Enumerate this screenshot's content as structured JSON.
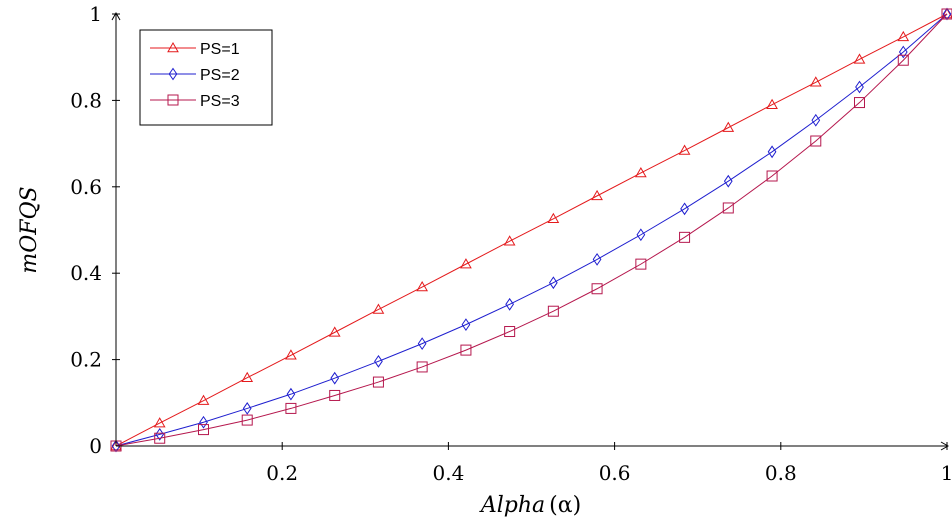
{
  "chart_data": {
    "type": "line",
    "xlabel_main": "Alpha",
    "xlabel_symbol": "(α)",
    "ylabel": "mOFQS",
    "xlim": [
      0,
      1
    ],
    "ylim": [
      0,
      1
    ],
    "xticks": [
      0.2,
      0.4,
      0.6,
      0.8,
      1
    ],
    "xtick_labels": [
      "0.2",
      "0.4",
      "0.6",
      "0.8",
      "1"
    ],
    "yticks": [
      0,
      0.2,
      0.4,
      0.6,
      0.8,
      1
    ],
    "ytick_labels": [
      "0",
      "0.2",
      "0.4",
      "0.6",
      "0.8",
      "1"
    ],
    "grid": false,
    "legend_position": "top-left",
    "x": [
      0,
      0.0526,
      0.1053,
      0.1579,
      0.2105,
      0.2632,
      0.3158,
      0.3684,
      0.4211,
      0.4737,
      0.5263,
      0.5789,
      0.6316,
      0.6842,
      0.7368,
      0.7895,
      0.8421,
      0.8947,
      0.9474,
      1
    ],
    "series": [
      {
        "name": "PS=1",
        "color": "#e41a1c",
        "marker": "triangle",
        "values": [
          0,
          0.053,
          0.105,
          0.158,
          0.21,
          0.263,
          0.316,
          0.368,
          0.421,
          0.474,
          0.526,
          0.579,
          0.632,
          0.684,
          0.737,
          0.79,
          0.842,
          0.895,
          0.947,
          1
        ]
      },
      {
        "name": "PS=2",
        "color": "#1f1fcf",
        "marker": "diamond",
        "values": [
          0,
          0.027,
          0.055,
          0.087,
          0.12,
          0.157,
          0.196,
          0.237,
          0.281,
          0.328,
          0.378,
          0.432,
          0.489,
          0.549,
          0.613,
          0.681,
          0.754,
          0.831,
          0.912,
          1
        ]
      },
      {
        "name": "PS=3",
        "color": "#b5174d",
        "marker": "square",
        "values": [
          0,
          0.018,
          0.038,
          0.06,
          0.087,
          0.117,
          0.148,
          0.183,
          0.222,
          0.265,
          0.312,
          0.364,
          0.421,
          0.483,
          0.551,
          0.625,
          0.706,
          0.795,
          0.893,
          1
        ]
      }
    ]
  }
}
